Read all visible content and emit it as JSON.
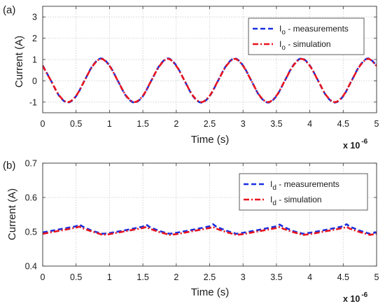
{
  "chart_data": [
    {
      "type": "line",
      "panel_label": "(a)",
      "xlabel": "Time (s)",
      "ylabel": "Current (A)",
      "x_multiplier": "x 10",
      "x_exponent": "-6",
      "xlim": [
        0,
        5
      ],
      "ylim": [
        -1.5,
        3.5
      ],
      "x_ticks": [
        "0",
        "0.5",
        "1",
        "1.5",
        "2",
        "2.5",
        "3",
        "3.5",
        "4",
        "4.5",
        "5"
      ],
      "y_ticks": [
        "-1",
        "0",
        "1",
        "2",
        "3"
      ],
      "grid": true,
      "legend_position": "top-right",
      "x": [
        0,
        0.125,
        0.25,
        0.375,
        0.5,
        0.625,
        0.75,
        0.875,
        1,
        1.125,
        1.25,
        1.375,
        1.5,
        1.625,
        1.75,
        1.875,
        2,
        2.125,
        2.25,
        2.375,
        2.5,
        2.625,
        2.75,
        2.875,
        3,
        3.125,
        3.25,
        3.375,
        3.5,
        3.625,
        3.75,
        3.875,
        4,
        4.125,
        4.25,
        4.375,
        4.5,
        4.625,
        4.75,
        4.875,
        5
      ],
      "series": [
        {
          "name": "Io - measurements",
          "legend_main": "I",
          "legend_sub": "o",
          "legend_rest": " - measurements",
          "color": "#1a2fe0",
          "style": "dashed",
          "values": [
            0.72,
            0.0,
            -0.72,
            -1.02,
            -0.72,
            0.0,
            0.72,
            1.05,
            0.72,
            0.0,
            -0.72,
            -1.02,
            -0.72,
            0.0,
            0.72,
            1.05,
            0.72,
            0.0,
            -0.72,
            -1.02,
            -0.72,
            0.0,
            0.72,
            1.05,
            0.72,
            0.0,
            -0.72,
            -1.02,
            -0.72,
            0.0,
            0.72,
            1.05,
            0.72,
            0.0,
            -0.72,
            -1.02,
            -0.72,
            0.0,
            0.72,
            1.05,
            0.72
          ]
        },
        {
          "name": "Io - simulation",
          "legend_main": "I",
          "legend_sub": "o",
          "legend_rest": " - simulation",
          "color": "#e8141e",
          "style": "dashdot",
          "values": [
            0.7,
            0.0,
            -0.7,
            -1.0,
            -0.7,
            0.0,
            0.7,
            1.03,
            0.7,
            0.0,
            -0.7,
            -1.0,
            -0.7,
            0.0,
            0.7,
            1.03,
            0.7,
            0.0,
            -0.7,
            -1.0,
            -0.7,
            0.0,
            0.7,
            1.03,
            0.7,
            0.0,
            -0.7,
            -1.0,
            -0.7,
            0.0,
            0.7,
            1.03,
            0.7,
            0.0,
            -0.7,
            -1.0,
            -0.7,
            0.0,
            0.7,
            1.03,
            0.7
          ]
        }
      ]
    },
    {
      "type": "line",
      "panel_label": "(b)",
      "xlabel": "Time (s)",
      "ylabel": "Current (A)",
      "x_multiplier": "x 10",
      "x_exponent": "-6",
      "xlim": [
        0,
        5
      ],
      "ylim": [
        0.4,
        0.7
      ],
      "x_ticks": [
        "0",
        "0.5",
        "1",
        "1.5",
        "2",
        "2.5",
        "3",
        "3.5",
        "4",
        "4.5",
        "5"
      ],
      "y_ticks": [
        "0.4",
        "0.5",
        "0.6",
        "0.7"
      ],
      "grid": true,
      "legend_position": "top-right",
      "x": [
        0,
        0.25,
        0.5,
        0.55,
        0.6,
        0.75,
        0.9,
        1.0,
        1.25,
        1.5,
        1.55,
        1.6,
        1.75,
        1.9,
        2.0,
        2.25,
        2.5,
        2.55,
        2.6,
        2.75,
        2.9,
        3.0,
        3.25,
        3.5,
        3.55,
        3.6,
        3.75,
        3.9,
        4.0,
        4.25,
        4.5,
        4.55,
        4.6,
        4.75,
        4.9,
        5.0
      ],
      "series": [
        {
          "name": "Id - measurements",
          "legend_main": "I",
          "legend_sub": "d",
          "legend_rest": " - measurements",
          "color": "#1a2fe0",
          "style": "dashed",
          "values": [
            0.498,
            0.507,
            0.516,
            0.521,
            0.515,
            0.502,
            0.494,
            0.496,
            0.505,
            0.515,
            0.521,
            0.514,
            0.502,
            0.494,
            0.497,
            0.506,
            0.516,
            0.522,
            0.515,
            0.503,
            0.494,
            0.497,
            0.506,
            0.516,
            0.521,
            0.515,
            0.502,
            0.494,
            0.497,
            0.506,
            0.516,
            0.522,
            0.515,
            0.503,
            0.494,
            0.499
          ]
        },
        {
          "name": "Id - simulation",
          "legend_main": "I",
          "legend_sub": "d",
          "legend_rest": " - simulation",
          "color": "#e8141e",
          "style": "dashdot",
          "values": [
            0.494,
            0.503,
            0.512,
            0.515,
            0.51,
            0.5,
            0.491,
            0.493,
            0.502,
            0.511,
            0.514,
            0.509,
            0.499,
            0.491,
            0.493,
            0.502,
            0.511,
            0.514,
            0.509,
            0.499,
            0.491,
            0.493,
            0.502,
            0.511,
            0.514,
            0.509,
            0.499,
            0.491,
            0.493,
            0.502,
            0.511,
            0.514,
            0.509,
            0.499,
            0.491,
            0.494
          ]
        }
      ]
    }
  ]
}
